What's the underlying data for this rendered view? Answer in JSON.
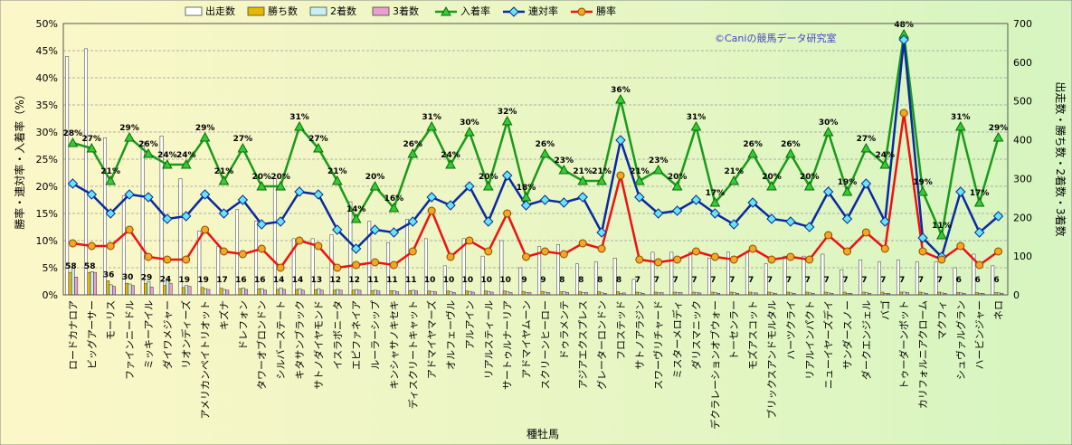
{
  "chart_data": {
    "type": "bar",
    "categories": [
      "ロードカナロア",
      "ビッグアーサー",
      "モーリス",
      "ファインニードル",
      "ミッキーアイル",
      "ダイワメジャー",
      "リオンディーズ",
      "アメリカンペイトリオット",
      "キズナ",
      "ドレフォン",
      "タワーオブロンドン",
      "シルバーステート",
      "キタサンブラック",
      "サトノダイヤモンド",
      "イスラボニータ",
      "エピファネイア",
      "ルーラーシップ",
      "キンシャサノキセキ",
      "ディスクリートキャット",
      "アドマイヤマーズ",
      "オルフェーヴル",
      "アルアイン",
      "リアルスティール",
      "サートゥルナーリア",
      "アドマイヤムーン",
      "スクリーンヒーロー",
      "ドゥラメンテ",
      "アジアエクスプレス",
      "グレーターロンドン",
      "フロステッド",
      "サトノアラジン",
      "スワーヴリチャード",
      "ミスターメロディ",
      "ダリスマニック",
      "デクラレーションオブウォー",
      "トーセンラー",
      "モズアスコット",
      "ブリックスアンドモルタル",
      "ハーツクライ",
      "リアルインパクト",
      "ニューイヤーズデイ",
      "サンダースノー",
      "ダークエンジェル",
      "バゴ",
      "トゥーダーンボット",
      "カリフォルニアクローム",
      "マクフィ",
      "シュヴァルグラン",
      "ハービンジャー",
      "ネロ"
    ],
    "series": [
      {
        "name": "出走数",
        "axis": "right",
        "color": "#ffffff",
        "values": [
          615,
          635,
          405,
          255,
          395,
          410,
          300,
          165,
          125,
          220,
          190,
          300,
          145,
          145,
          155,
          240,
          190,
          135,
          195,
          145,
          75,
          145,
          100,
          140,
          70,
          125,
          130,
          80,
          85,
          95,
          40,
          110,
          110,
          110,
          95,
          110,
          110,
          80,
          100,
          100,
          105,
          65,
          90,
          85,
          90,
          85,
          85,
          70,
          105,
          75
        ]
      },
      {
        "name": "勝ち数",
        "axis": "right",
        "color": "#e6b800",
        "values": [
          58,
          58,
          36,
          30,
          29,
          24,
          19,
          19,
          17,
          16,
          16,
          14,
          14,
          13,
          12,
          12,
          11,
          11,
          11,
          10,
          10,
          10,
          10,
          10,
          9,
          9,
          8,
          8,
          8,
          8,
          7,
          7,
          7,
          7,
          7,
          7,
          7,
          7,
          7,
          7,
          7,
          7,
          7,
          7,
          7,
          7,
          7,
          6,
          6,
          6
        ]
      },
      {
        "name": "2着数",
        "axis": "right",
        "color": "#c8f0f0",
        "values": [
          70,
          60,
          26,
          28,
          34,
          40,
          24,
          16,
          14,
          18,
          16,
          18,
          16,
          16,
          14,
          14,
          12,
          10,
          12,
          9,
          8,
          9,
          9,
          8,
          6,
          7,
          8,
          6,
          5,
          4,
          6,
          5,
          6,
          6,
          6,
          6,
          5,
          5,
          5,
          5,
          5,
          4,
          6,
          4,
          7,
          5,
          5,
          5,
          4,
          5
        ]
      },
      {
        "name": "3着数",
        "axis": "right",
        "color": "#e8a0d0",
        "values": [
          46,
          58,
          22,
          24,
          20,
          30,
          22,
          14,
          12,
          14,
          12,
          14,
          12,
          12,
          12,
          12,
          10,
          8,
          10,
          8,
          6,
          7,
          7,
          6,
          6,
          6,
          6,
          6,
          4,
          5,
          4,
          6,
          6,
          5,
          4,
          4,
          5,
          4,
          4,
          4,
          4,
          4,
          4,
          4,
          6,
          4,
          4,
          4,
          4,
          4
        ]
      },
      {
        "name": "入着率",
        "axis": "left",
        "color": "#1a9a1a",
        "values": [
          28,
          27,
          21,
          29,
          26,
          24,
          24,
          29,
          21,
          27,
          20,
          20,
          31,
          27,
          21,
          14,
          20,
          16,
          26,
          31,
          24,
          30,
          20,
          32,
          18,
          26,
          23,
          21,
          21,
          36,
          21,
          23,
          20,
          31,
          17,
          21,
          26,
          20,
          26,
          20,
          30,
          19,
          27,
          24,
          48,
          19,
          11,
          31,
          17,
          29
        ]
      },
      {
        "name": "連対率",
        "axis": "left",
        "color": "#0a2aa0",
        "values": [
          20.5,
          18.5,
          15,
          18.5,
          18,
          14,
          14.5,
          18.5,
          15,
          17.5,
          13,
          13.5,
          19,
          18.5,
          12,
          8.5,
          12,
          11.5,
          13.5,
          18,
          16.5,
          20,
          13.5,
          22,
          16.5,
          17.5,
          17,
          18,
          11.5,
          28.5,
          18,
          15,
          15.5,
          17.5,
          15,
          13,
          17,
          14,
          13.5,
          12.5,
          19,
          14,
          20.5,
          13.5,
          47,
          10.5,
          7,
          19,
          11.5,
          14.5
        ]
      },
      {
        "name": "勝率",
        "axis": "left",
        "color": "#ee1111",
        "values": [
          9.5,
          9,
          9,
          12,
          7,
          6.5,
          6.5,
          12,
          8,
          7.5,
          8.5,
          5,
          10,
          9,
          5,
          5.5,
          6,
          5.5,
          8,
          15.5,
          7,
          10,
          8,
          15,
          7,
          8,
          7.5,
          9.5,
          8.5,
          22,
          6.5,
          6,
          6.5,
          8,
          7,
          6.5,
          8.5,
          6.5,
          7,
          6.5,
          11,
          8,
          11.5,
          8.5,
          33.5,
          8,
          6.5,
          9,
          5.5,
          8
        ]
      }
    ],
    "win_count_labels": [
      58,
      58,
      36,
      30,
      29,
      24,
      19,
      19,
      17,
      16,
      16,
      14,
      14,
      13,
      12,
      12,
      11,
      11,
      11,
      10,
      10,
      10,
      10,
      10,
      9,
      9,
      8,
      8,
      8,
      8,
      7,
      7,
      7,
      7,
      7,
      7,
      7,
      7,
      7,
      7,
      7,
      7,
      7,
      7,
      7,
      7,
      7,
      6,
      6,
      6
    ],
    "top3_rate_labels": [
      "28%",
      "27%",
      "21%",
      "29%",
      "26%",
      "24%",
      "24%",
      "29%",
      "21%",
      "27%",
      "20%",
      "20%",
      "31%",
      "27%",
      "21%",
      "14%",
      "20%",
      "16%",
      "26%",
      "31%",
      "24%",
      "30%",
      "20%",
      "32%",
      "18%",
      "26%",
      "23%",
      "21%",
      "21%",
      "36%",
      "21%",
      "23%",
      "20%",
      "31%",
      "17%",
      "21%",
      "26%",
      "20%",
      "26%",
      "20%",
      "30%",
      "19%",
      "27%",
      "24%",
      "48%",
      "19%",
      "11%",
      "31%",
      "17%",
      "29%"
    ],
    "xlabel": "種牡馬",
    "ylabel_left": "勝率・連対率・入着率（%）",
    "ylabel_right": "出走数・勝ち数・2着数・3着数",
    "ylim_left": [
      0,
      50
    ],
    "ylim_right": [
      0,
      700
    ],
    "left_ticks": [
      "0%",
      "5%",
      "10%",
      "15%",
      "20%",
      "25%",
      "30%",
      "35%",
      "40%",
      "45%",
      "50%"
    ],
    "right_ticks": [
      "0",
      "100",
      "200",
      "300",
      "400",
      "500",
      "600",
      "700"
    ],
    "legend_position": "top",
    "grid": true
  },
  "credit": "©Caniの競馬データ研究室",
  "colors": {
    "background_left": "#fdf7c8",
    "background_right": "#d6f5c0",
    "grid": "#9a9a9a",
    "bar_outline": "#333333"
  }
}
